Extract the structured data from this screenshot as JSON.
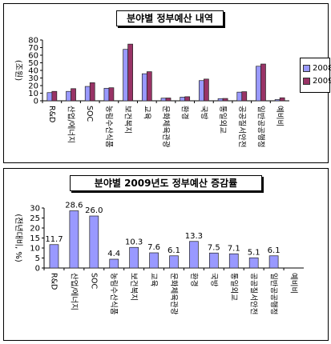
{
  "chart_data": [
    {
      "type": "bar",
      "title": "분야별 정부예산 내역",
      "ylabel": "(조원)",
      "ylim": [
        0,
        80
      ],
      "yticks": [
        0,
        10,
        20,
        30,
        40,
        50,
        60,
        70,
        80
      ],
      "categories": [
        "R&D",
        "산업/에너지",
        "SOC",
        "농림수산식품",
        "보건복지",
        "교육",
        "문화체육관광",
        "환경",
        "국방",
        "통일외교",
        "공공질서안전",
        "일반공공행정",
        "예비비"
      ],
      "series": [
        {
          "name": "2008",
          "color": "#9999ff",
          "values": [
            10.8,
            12.4,
            18.9,
            16.5,
            67.7,
            35.6,
            3.5,
            4.8,
            26.6,
            2.9,
            11.4,
            45.5,
            1.6
          ]
        },
        {
          "name": "2009",
          "color": "#993366",
          "values": [
            12.4,
            16.0,
            23.8,
            17.2,
            74.6,
            38.3,
            3.7,
            5.4,
            28.6,
            3.1,
            12.0,
            48.4,
            4.0
          ]
        }
      ],
      "grid": false,
      "legend_position": "right"
    },
    {
      "type": "bar",
      "title": "분야별 2009년도 정부예산 증감률",
      "ylabel": "(전년대비, %)",
      "ylim": [
        0,
        30
      ],
      "yticks": [
        0,
        5,
        10,
        15,
        20,
        25,
        30
      ],
      "categories": [
        "R&D",
        "산업/에너지",
        "SOC",
        "농림수산식품",
        "보건복지",
        "교육",
        "문화체육관광",
        "환경",
        "국방",
        "통일외교",
        "공공질서안전",
        "일반공공행정",
        "예비비"
      ],
      "series": [
        {
          "color": "#9999ff",
          "values": [
            11.7,
            28.6,
            26.0,
            4.4,
            10.3,
            7.6,
            6.1,
            13.3,
            7.5,
            7.1,
            5.1,
            6.1,
            null
          ],
          "labels": [
            "11.7",
            "28.6",
            "26.0",
            "4.4",
            "10.3",
            "7.6",
            "6.1",
            "13.3",
            "7.5",
            "7.1",
            "5.1",
            "6.1",
            ""
          ]
        }
      ],
      "grid": false,
      "legend_position": "none"
    }
  ]
}
